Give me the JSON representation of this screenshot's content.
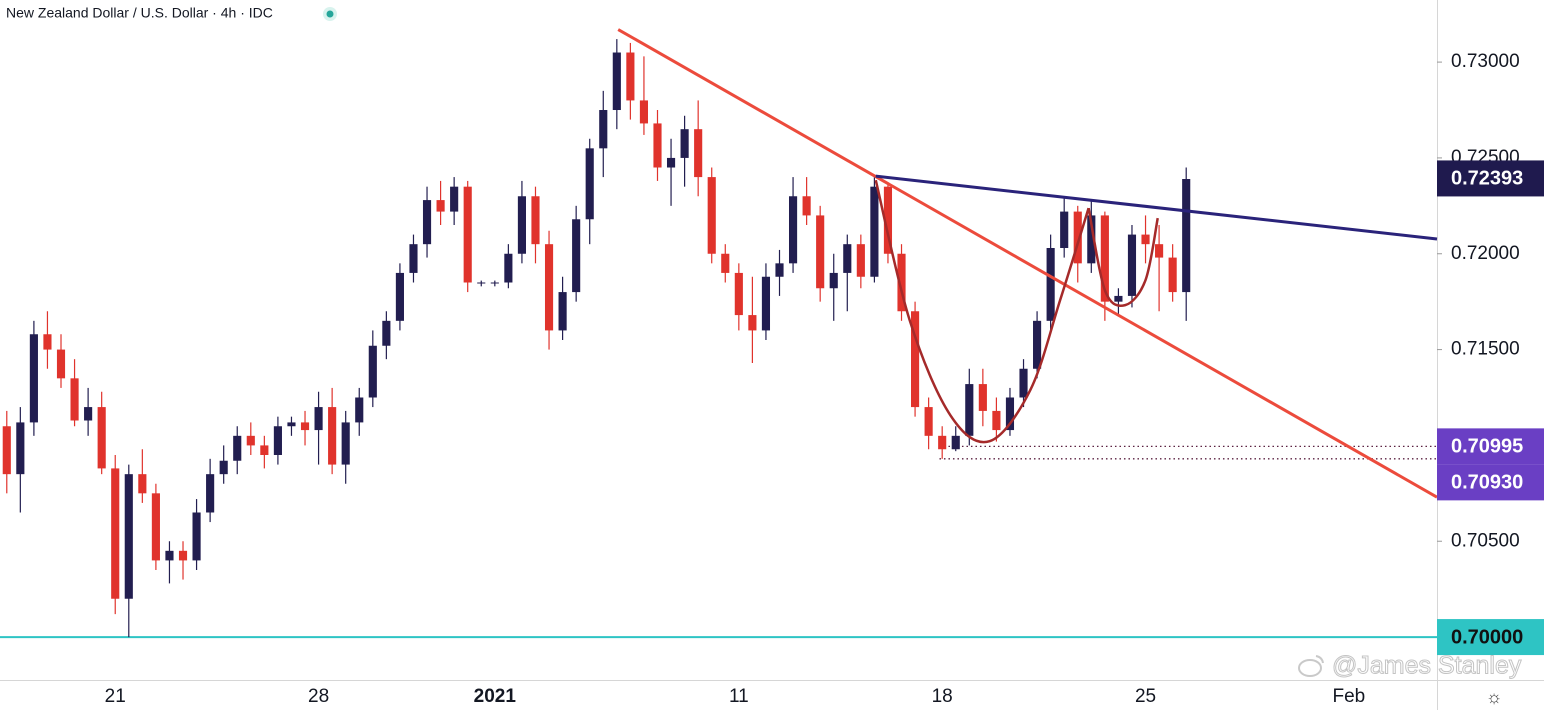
{
  "chart_data": {
    "type": "candlestick",
    "title": "New Zealand Dollar / U.S. Dollar · 4h · IDC",
    "watermark": "@James Stanley",
    "up_color": "#221e50",
    "down_color": "#e0332c",
    "ylim": [
      0.69776,
      0.73324
    ],
    "yticks": [
      {
        "value": 0.73,
        "label": "0.73000"
      },
      {
        "value": 0.725,
        "label": "0.72500"
      },
      {
        "value": 0.72,
        "label": "0.72000"
      },
      {
        "value": 0.715,
        "label": "0.71500"
      },
      {
        "value": 0.705,
        "label": "0.70500"
      }
    ],
    "categories": [
      null,
      null,
      null,
      null,
      null,
      null,
      null,
      null,
      "21",
      null,
      null,
      null,
      null,
      null,
      null,
      null,
      null,
      null,
      null,
      null,
      null,
      null,
      null,
      "28",
      null,
      null,
      null,
      null,
      null,
      null,
      null,
      null,
      null,
      null,
      null,
      null,
      "2021",
      null,
      null,
      null,
      null,
      null,
      null,
      null,
      null,
      null,
      null,
      null,
      null,
      null,
      null,
      null,
      null,
      null,
      "11",
      null,
      null,
      null,
      null,
      null,
      null,
      null,
      null,
      null,
      null,
      null,
      null,
      null,
      null,
      "18",
      null,
      null,
      null,
      null,
      null,
      null,
      null,
      null,
      null,
      null,
      null,
      null,
      null,
      null,
      "25",
      null,
      null,
      null,
      null,
      null,
      null,
      null,
      null,
      null,
      null,
      null,
      null,
      null,
      null,
      "Feb",
      null,
      null,
      null,
      null,
      null,
      null
    ],
    "open": [
      0.711,
      0.7085,
      0.7112,
      0.7158,
      0.715,
      0.7135,
      0.7113,
      0.712,
      0.7088,
      0.702,
      0.7085,
      0.7075,
      0.704,
      0.7045,
      0.704,
      0.7065,
      0.7085,
      0.7092,
      0.7105,
      0.71,
      0.7095,
      0.711,
      0.7112,
      0.7108,
      0.712,
      0.709,
      0.7112,
      0.7125,
      0.7152,
      0.7165,
      0.719,
      0.7205,
      0.7228,
      0.7222,
      0.7235,
      0.7185,
      0.7185,
      0.7185,
      0.72,
      0.723,
      0.7205,
      0.716,
      0.718,
      0.7218,
      0.7255,
      0.7275,
      0.7305,
      0.728,
      0.7268,
      0.7245,
      0.725,
      0.7265,
      0.724,
      0.72,
      0.719,
      0.7168,
      0.716,
      0.7188,
      0.7195,
      0.723,
      0.722,
      0.7182,
      0.719,
      0.7205,
      0.7188,
      0.7235,
      0.72,
      0.717,
      0.712,
      0.7105,
      0.7098,
      0.7105,
      0.7132,
      0.7118,
      0.7108,
      0.7125,
      0.714,
      0.7165,
      0.7203,
      0.7222,
      0.7195,
      0.722,
      0.7175,
      0.7178,
      0.721,
      0.7205,
      0.7198,
      0.718,
      null,
      null,
      null,
      null,
      null,
      null,
      null,
      null,
      null,
      null,
      null,
      null,
      null,
      null,
      null,
      null,
      null,
      null
    ],
    "high": [
      0.7118,
      0.712,
      0.7165,
      0.717,
      0.7158,
      0.7145,
      0.713,
      0.7128,
      0.7095,
      0.709,
      0.7098,
      0.708,
      0.705,
      0.705,
      0.7072,
      0.7093,
      0.71,
      0.711,
      0.7112,
      0.7105,
      0.7115,
      0.7115,
      0.7118,
      0.7128,
      0.713,
      0.7118,
      0.713,
      0.716,
      0.717,
      0.7195,
      0.721,
      0.7235,
      0.7238,
      0.724,
      0.7238,
      0.7186,
      0.7186,
      0.7205,
      0.7238,
      0.7235,
      0.7212,
      0.7188,
      0.7225,
      0.726,
      0.7285,
      0.7312,
      0.731,
      0.7303,
      0.7275,
      0.726,
      0.7272,
      0.728,
      0.7245,
      0.7205,
      0.7195,
      0.7188,
      0.7195,
      0.7202,
      0.724,
      0.724,
      0.7225,
      0.72,
      0.721,
      0.721,
      0.724,
      0.7237,
      0.7205,
      0.7175,
      0.7125,
      0.711,
      0.711,
      0.714,
      0.714,
      0.7125,
      0.713,
      0.7145,
      0.717,
      0.721,
      0.723,
      0.7225,
      0.7228,
      0.7222,
      0.7182,
      0.7215,
      0.722,
      0.7215,
      0.7205,
      0.7245,
      null,
      null,
      null,
      null,
      null,
      null,
      null,
      null,
      null,
      null,
      null,
      null,
      null,
      null,
      null,
      null,
      null,
      null
    ],
    "low": [
      0.7075,
      0.7065,
      0.7105,
      0.714,
      0.713,
      0.711,
      0.7105,
      0.7085,
      0.7012,
      0.7,
      0.707,
      0.7035,
      0.7028,
      0.703,
      0.7035,
      0.706,
      0.708,
      0.7085,
      0.7095,
      0.7088,
      0.709,
      0.7105,
      0.71,
      0.709,
      0.7085,
      0.708,
      0.7105,
      0.712,
      0.7145,
      0.716,
      0.7185,
      0.7198,
      0.7215,
      0.7215,
      0.718,
      0.7183,
      0.7183,
      0.7182,
      0.7195,
      0.7195,
      0.715,
      0.7155,
      0.7175,
      0.7205,
      0.724,
      0.7265,
      0.727,
      0.7262,
      0.7238,
      0.7225,
      0.7235,
      0.723,
      0.7195,
      0.7185,
      0.716,
      0.7143,
      0.7155,
      0.7178,
      0.719,
      0.7215,
      0.7175,
      0.7165,
      0.717,
      0.7182,
      0.7185,
      0.7195,
      0.7165,
      0.7115,
      0.7098,
      0.7093,
      0.7097,
      0.71,
      0.711,
      0.7102,
      0.7105,
      0.712,
      0.7135,
      0.716,
      0.7198,
      0.7185,
      0.719,
      0.7165,
      0.7168,
      0.7172,
      0.7195,
      0.717,
      0.7175,
      0.7165,
      null,
      null,
      null,
      null,
      null,
      null,
      null,
      null,
      null,
      null,
      null,
      null,
      null,
      null,
      null,
      null,
      null,
      null
    ],
    "close": [
      0.7085,
      0.7112,
      0.7158,
      0.715,
      0.7135,
      0.7113,
      0.712,
      0.7088,
      0.702,
      0.7085,
      0.7075,
      0.704,
      0.7045,
      0.704,
      0.7065,
      0.7085,
      0.7092,
      0.7105,
      0.71,
      0.7095,
      0.711,
      0.7112,
      0.7108,
      0.712,
      0.709,
      0.7112,
      0.7125,
      0.7152,
      0.7165,
      0.719,
      0.7205,
      0.7228,
      0.7222,
      0.7235,
      0.7185,
      0.7185,
      0.7185,
      0.72,
      0.723,
      0.7205,
      0.716,
      0.718,
      0.7218,
      0.7255,
      0.7275,
      0.7305,
      0.728,
      0.7268,
      0.7245,
      0.725,
      0.7265,
      0.724,
      0.72,
      0.719,
      0.7168,
      0.716,
      0.7188,
      0.7195,
      0.723,
      0.722,
      0.7182,
      0.719,
      0.7205,
      0.7188,
      0.7235,
      0.72,
      0.717,
      0.712,
      0.7105,
      0.7098,
      0.7105,
      0.7132,
      0.7118,
      0.7108,
      0.7125,
      0.714,
      0.7165,
      0.7203,
      0.7222,
      0.7195,
      0.722,
      0.7175,
      0.7178,
      0.721,
      0.7205,
      0.7198,
      0.718,
      0.7239,
      null,
      null,
      null,
      null,
      null,
      null,
      null,
      null,
      null,
      null,
      null,
      null,
      null,
      null,
      null,
      null,
      null,
      null
    ],
    "trendlines": [
      {
        "color": "#ec4b3c",
        "x": [
          45.1,
          105.5
        ],
        "y": [
          0.7317,
          0.7073
        ]
      },
      {
        "color": "#2a237a",
        "x": [
          64.1,
          105.5
        ],
        "y": [
          0.72405,
          0.72077
        ]
      }
    ],
    "curves": [
      {
        "color": "#a52a2a",
        "x": [
          64.1,
          66.6,
          69.6,
          72.5,
          75.5,
          77.7,
          79.8
        ],
        "y": [
          0.72384,
          0.71654,
          0.71158,
          0.71022,
          0.71289,
          0.71758,
          0.72238
        ]
      },
      {
        "color": "#a52a2a",
        "x": [
          79.8,
          81.0,
          82.5,
          84.0,
          84.9
        ],
        "y": [
          0.72238,
          0.7181,
          0.71732,
          0.71863,
          0.72186
        ]
      }
    ],
    "levels": [
      {
        "value": 0.72393,
        "color": "#1f1a4e",
        "text_color": "#ffffff"
      },
      {
        "value": 0.70995,
        "color": "#6a3fc4",
        "text_color": "#ffffff",
        "line": "dotted",
        "line_color": "#5a2040",
        "from": 68.8
      },
      {
        "value": 0.7093,
        "label": "0.70930",
        "color": "#6a3fc4",
        "text_color": "#ffffff",
        "line": "dotted",
        "line_color": "#5a2040",
        "from": 68.8
      },
      {
        "value": 0.7,
        "label": "0.70000",
        "color": "#2ec4c4",
        "text_color": "#111111",
        "line": "solid",
        "line_color": "#2ec4c4",
        "from": -0.5
      }
    ]
  }
}
